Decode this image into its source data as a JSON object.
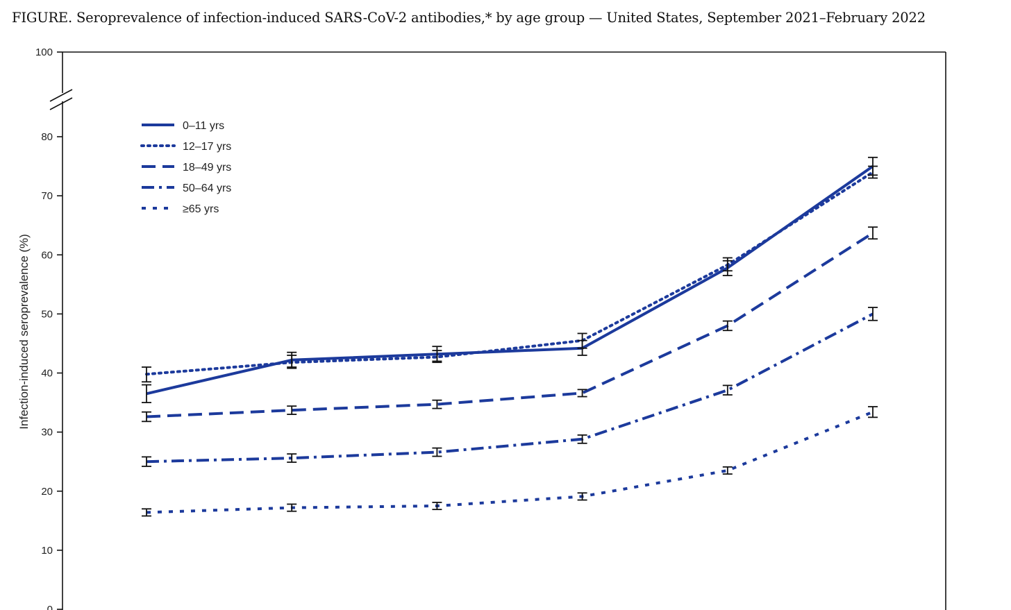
{
  "title": "FIGURE. Seroprevalence of infection-induced SARS-CoV-2 antibodies,* by age group — United States, September 2021–February 2022",
  "colors": {
    "series": "#1c3a9c",
    "error_bar": "#111111",
    "axis": "#111111"
  },
  "chart_data": {
    "type": "line",
    "title": "FIGURE. Seroprevalence of infection-induced SARS-CoV-2 antibodies,* by age group — United States, September 2021–February 2022",
    "xlabel": "",
    "ylabel": "Infection-induced seroprevalence (%)",
    "ylim": [
      0,
      100
    ],
    "yticks": [
      0,
      10,
      20,
      30,
      40,
      50,
      60,
      70,
      80,
      100
    ],
    "y_axis_break": [
      80,
      100
    ],
    "grid": false,
    "legend_position": "top-left",
    "x": [
      1,
      2,
      3,
      4,
      5,
      6
    ],
    "series": [
      {
        "name": "0–11 yrs",
        "dash": "solid",
        "values": [
          36.5,
          42.2,
          43.2,
          44.2,
          57.8,
          75.0
        ],
        "ci_low": [
          35.0,
          41.0,
          42.0,
          43.0,
          56.5,
          73.5
        ],
        "ci_high": [
          38.0,
          43.5,
          44.5,
          45.5,
          59.0,
          76.5
        ]
      },
      {
        "name": "12–17 yrs",
        "dash": "dot",
        "values": [
          39.8,
          41.8,
          42.7,
          45.5,
          58.3,
          74.0
        ],
        "ci_low": [
          38.5,
          40.8,
          41.8,
          44.2,
          57.3,
          73.0
        ],
        "ci_high": [
          41.0,
          43.0,
          43.8,
          46.7,
          59.5,
          75.0
        ]
      },
      {
        "name": "18–49 yrs",
        "dash": "dash",
        "values": [
          32.6,
          33.7,
          34.7,
          36.6,
          48.0,
          63.7
        ],
        "ci_low": [
          31.8,
          33.0,
          34.0,
          36.0,
          47.2,
          62.7
        ],
        "ci_high": [
          33.4,
          34.4,
          35.4,
          37.2,
          48.8,
          64.7
        ]
      },
      {
        "name": "50–64 yrs",
        "dash": "dash-dot",
        "values": [
          25.0,
          25.6,
          26.6,
          28.8,
          37.1,
          50.0
        ],
        "ci_low": [
          24.2,
          24.9,
          25.9,
          28.1,
          36.3,
          48.9
        ],
        "ci_high": [
          25.8,
          26.3,
          27.3,
          29.5,
          37.9,
          51.1
        ]
      },
      {
        "name": "≥65 yrs",
        "dash": "short-dash",
        "values": [
          16.4,
          17.2,
          17.5,
          19.1,
          23.5,
          33.4
        ],
        "ci_low": [
          15.8,
          16.6,
          16.9,
          18.5,
          22.9,
          32.5
        ],
        "ci_high": [
          17.0,
          17.8,
          18.1,
          19.7,
          24.1,
          34.3
        ]
      }
    ]
  }
}
